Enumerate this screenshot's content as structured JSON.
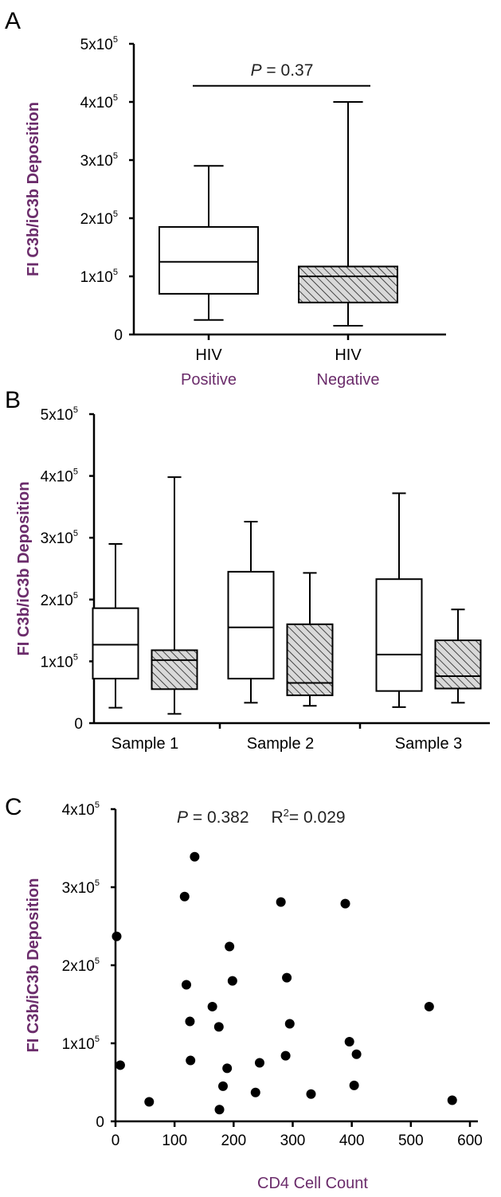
{
  "colors": {
    "axis": "#000000",
    "text_purple": "#6b2c6b",
    "box_fill_open": "#ffffff",
    "box_fill_hatched": "#d9d9d9",
    "points": "#000000"
  },
  "chart_data": [
    {
      "panel": "A",
      "type": "box",
      "ylabel": "FI C3b/iC3b Deposition",
      "ylim": [
        0,
        500000
      ],
      "yticks": [
        {
          "value": 0,
          "base": "0",
          "exp": ""
        },
        {
          "value": 100000,
          "base": "1x10",
          "exp": "5"
        },
        {
          "value": 200000,
          "base": "2x10",
          "exp": "5"
        },
        {
          "value": 300000,
          "base": "3x10",
          "exp": "5"
        },
        {
          "value": 400000,
          "base": "4x10",
          "exp": "5"
        },
        {
          "value": 500000,
          "base": "5x10",
          "exp": "5"
        }
      ],
      "categories": [
        {
          "line1": "HIV",
          "line2": "Positive"
        },
        {
          "line1": "HIV",
          "line2": "Negative"
        }
      ],
      "boxes": [
        {
          "min": 25000,
          "q1": 70000,
          "median": 125000,
          "q3": 185000,
          "max": 290000,
          "hatched": false
        },
        {
          "min": 15000,
          "q1": 55000,
          "median": 100000,
          "q3": 117000,
          "max": 400000,
          "hatched": true
        }
      ],
      "annotation": {
        "p_italic": "P",
        "p_rest": " = 0.37",
        "y_value": 425000
      }
    },
    {
      "panel": "B",
      "type": "box",
      "ylabel": "FI C3b/iC3b Deposition",
      "ylim": [
        0,
        500000
      ],
      "yticks": [
        {
          "value": 0,
          "base": "0",
          "exp": ""
        },
        {
          "value": 100000,
          "base": "1x10",
          "exp": "5"
        },
        {
          "value": 200000,
          "base": "2x10",
          "exp": "5"
        },
        {
          "value": 300000,
          "base": "3x10",
          "exp": "5"
        },
        {
          "value": 400000,
          "base": "4x10",
          "exp": "5"
        },
        {
          "value": 500000,
          "base": "5x10",
          "exp": "5"
        }
      ],
      "groups": [
        "Sample 1",
        "Sample 2",
        "Sample 3"
      ],
      "boxes": [
        {
          "group": 0,
          "min": 25000,
          "q1": 72000,
          "median": 127000,
          "q3": 186000,
          "max": 290000,
          "hatched": false
        },
        {
          "group": 0,
          "min": 15000,
          "q1": 55000,
          "median": 102000,
          "q3": 118000,
          "max": 398000,
          "hatched": true
        },
        {
          "group": 1,
          "min": 33000,
          "q1": 72000,
          "median": 155000,
          "q3": 245000,
          "max": 326000,
          "hatched": false
        },
        {
          "group": 1,
          "min": 28000,
          "q1": 45000,
          "median": 65000,
          "q3": 160000,
          "max": 243000,
          "hatched": true
        },
        {
          "group": 2,
          "min": 26000,
          "q1": 52000,
          "median": 111000,
          "q3": 233000,
          "max": 372000,
          "hatched": false
        },
        {
          "group": 2,
          "min": 33000,
          "q1": 56000,
          "median": 76000,
          "q3": 134000,
          "max": 184000,
          "hatched": true
        }
      ]
    },
    {
      "panel": "C",
      "type": "scatter",
      "xlabel": "CD4 Cell Count",
      "ylabel": "FI C3b/iC3b Deposition",
      "xlim": [
        0,
        600
      ],
      "ylim": [
        0,
        400000
      ],
      "xticks": [
        0,
        100,
        200,
        300,
        400,
        500,
        600
      ],
      "yticks": [
        {
          "value": 0,
          "base": "0",
          "exp": ""
        },
        {
          "value": 100000,
          "base": "1x10",
          "exp": "5"
        },
        {
          "value": 200000,
          "base": "2x10",
          "exp": "5"
        },
        {
          "value": 300000,
          "base": "3x10",
          "exp": "5"
        },
        {
          "value": 400000,
          "base": "4x10",
          "exp": "5"
        }
      ],
      "annotation": {
        "p_italic": "P",
        "p_rest": " = 0.382",
        "r2_base": "R",
        "r2_exp": "2",
        "r2_rest": "= 0.029"
      },
      "points": [
        {
          "x": 2,
          "y": 237000
        },
        {
          "x": 8,
          "y": 72000
        },
        {
          "x": 57,
          "y": 25000
        },
        {
          "x": 117,
          "y": 288000
        },
        {
          "x": 120,
          "y": 175000
        },
        {
          "x": 126,
          "y": 128000
        },
        {
          "x": 127,
          "y": 78000
        },
        {
          "x": 134,
          "y": 339000
        },
        {
          "x": 164,
          "y": 147000
        },
        {
          "x": 175,
          "y": 121000
        },
        {
          "x": 176,
          "y": 15000
        },
        {
          "x": 182,
          "y": 45000
        },
        {
          "x": 189,
          "y": 68000
        },
        {
          "x": 193,
          "y": 224000
        },
        {
          "x": 198,
          "y": 180000
        },
        {
          "x": 237,
          "y": 37000
        },
        {
          "x": 244,
          "y": 75000
        },
        {
          "x": 280,
          "y": 281000
        },
        {
          "x": 288,
          "y": 84000
        },
        {
          "x": 290,
          "y": 184000
        },
        {
          "x": 295,
          "y": 125000
        },
        {
          "x": 331,
          "y": 35000
        },
        {
          "x": 389,
          "y": 279000
        },
        {
          "x": 396,
          "y": 102000
        },
        {
          "x": 404,
          "y": 46000
        },
        {
          "x": 408,
          "y": 86000
        },
        {
          "x": 531,
          "y": 147000
        },
        {
          "x": 570,
          "y": 27000
        }
      ]
    }
  ]
}
